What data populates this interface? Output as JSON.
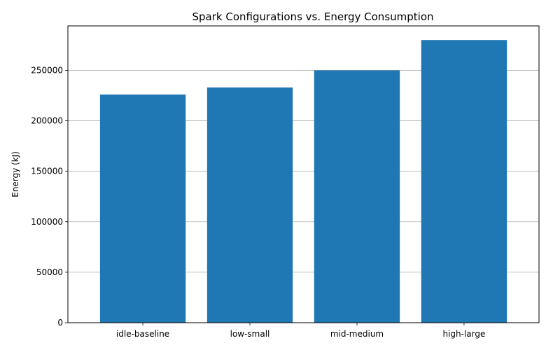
{
  "colors": {
    "bar": "#1f77b4",
    "grid": "#b0b0b0",
    "axis": "#000000",
    "background": "#ffffff"
  },
  "chart_data": {
    "type": "bar",
    "title": "Spark Configurations vs. Energy Consumption",
    "xlabel": "",
    "ylabel": "Energy (kJ)",
    "categories": [
      "idle-baseline",
      "low-small",
      "mid-medium",
      "high-large"
    ],
    "values": [
      226000,
      233000,
      250000,
      280000
    ],
    "ylim": [
      0,
      294000
    ],
    "yticks": [
      0,
      50000,
      100000,
      150000,
      200000,
      250000
    ],
    "grid": "y-axis major",
    "legend": "none"
  }
}
